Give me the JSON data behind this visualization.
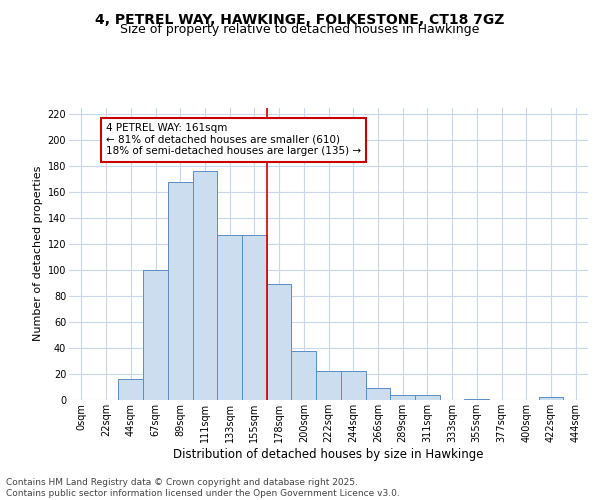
{
  "title_line1": "4, PETREL WAY, HAWKINGE, FOLKESTONE, CT18 7GZ",
  "title_line2": "Size of property relative to detached houses in Hawkinge",
  "xlabel": "Distribution of detached houses by size in Hawkinge",
  "ylabel": "Number of detached properties",
  "bin_labels": [
    "0sqm",
    "22sqm",
    "44sqm",
    "67sqm",
    "89sqm",
    "111sqm",
    "133sqm",
    "155sqm",
    "178sqm",
    "200sqm",
    "222sqm",
    "244sqm",
    "266sqm",
    "289sqm",
    "311sqm",
    "333sqm",
    "355sqm",
    "377sqm",
    "400sqm",
    "422sqm",
    "444sqm"
  ],
  "bar_heights": [
    0,
    0,
    16,
    100,
    168,
    176,
    127,
    127,
    89,
    38,
    22,
    22,
    9,
    4,
    4,
    0,
    1,
    0,
    0,
    2,
    0
  ],
  "bar_color": "#ccddf0",
  "bar_edge_color": "#5b8ec4",
  "red_line_x": 7.5,
  "red_line_color": "#cc0000",
  "annotation_line1": "4 PETREL WAY: 161sqm",
  "annotation_line2": "← 81% of detached houses are smaller (610)",
  "annotation_line3": "18% of semi-detached houses are larger (135) →",
  "annotation_box_edgecolor": "#cc0000",
  "annotation_bg_color": "#ffffff",
  "ylim_max": 225,
  "yticks": [
    0,
    20,
    40,
    60,
    80,
    100,
    120,
    140,
    160,
    180,
    200,
    220
  ],
  "grid_color": "#c8d8ea",
  "footer_line1": "Contains HM Land Registry data © Crown copyright and database right 2025.",
  "footer_line2": "Contains public sector information licensed under the Open Government Licence v3.0.",
  "title_fontsize": 10,
  "subtitle_fontsize": 9,
  "ylabel_fontsize": 8,
  "xlabel_fontsize": 8.5,
  "tick_fontsize": 7,
  "annot_fontsize": 7.5,
  "footer_fontsize": 6.5
}
